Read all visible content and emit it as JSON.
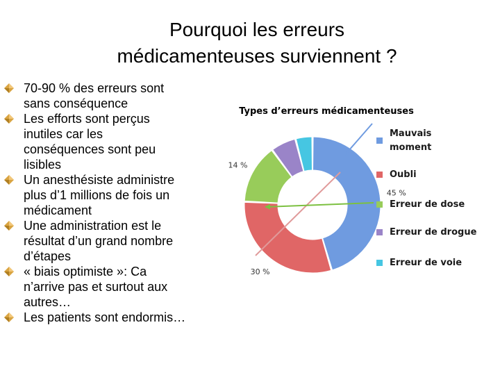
{
  "slide": {
    "title_line1": "Pourquoi les erreurs",
    "title_line2": "médicamenteuses surviennent ?",
    "bullets": [
      [
        "70-90 % des erreurs sont",
        "sans conséquence"
      ],
      [
        "Les efforts sont perçus",
        "inutiles car les",
        "conséquences sont peu",
        "lisibles"
      ],
      [
        "Un anesthésiste administre",
        "plus d’1 millions de fois un",
        "médicament"
      ],
      [
        "Une administration est le",
        "résultat d’un grand nombre",
        "d’étapes"
      ],
      [
        "« biais optimiste »: Ca",
        "n’arrive pas et surtout aux",
        "autres…"
      ],
      [
        "Les patients sont endormis…"
      ]
    ]
  },
  "chart_data": {
    "type": "pie",
    "style": "doughnut",
    "title": "Types d’erreurs médicamenteuses",
    "categories": [
      "Mauvais moment",
      "Oubli",
      "Erreur de dose",
      "Erreur de drogue",
      "Erreur de voie"
    ],
    "legend_lines": [
      [
        "Mauvais",
        "moment"
      ],
      [
        "Oubli"
      ],
      [
        "Erreur de dose"
      ],
      [
        "Erreur de drogue"
      ],
      [
        "Erreur de voie"
      ]
    ],
    "values": [
      45,
      30,
      14,
      6,
      4
    ],
    "data_labels": [
      "45 %",
      "30 %",
      "14 %",
      "",
      ""
    ],
    "colors": [
      "#6f9be0",
      "#e06666",
      "#98cc5a",
      "#9a84c8",
      "#46c6e2"
    ],
    "arrow_colors": [
      "#6f9be0",
      "#e09a9a",
      "#7cc040"
    ],
    "legend_position": "right"
  }
}
